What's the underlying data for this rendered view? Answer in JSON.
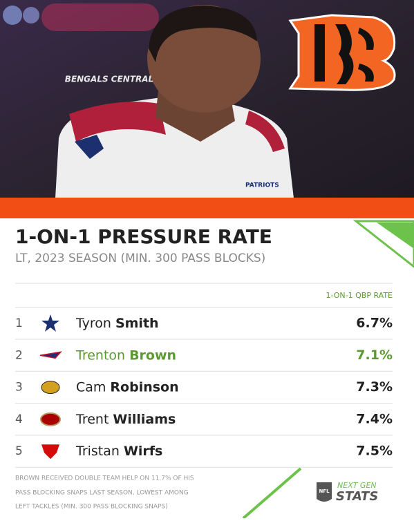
{
  "header": {
    "brand": "BENGALS CENTRAL",
    "jersey": "PATRIOTS"
  },
  "title": "1-ON-1 PRESSURE RATE",
  "subtitle": "LT, 2023 SEASON (MIN. 300 PASS BLOCKS)",
  "table": {
    "column": "1-ON-1 QBP RATE",
    "rows": [
      {
        "rank": 1,
        "first": "Tyron",
        "last": "Smith",
        "rate": "6.7%"
      },
      {
        "rank": 2,
        "first": "Trenton",
        "last": "Brown",
        "rate": "7.1%"
      },
      {
        "rank": 3,
        "first": "Cam",
        "last": "Robinson",
        "rate": "7.3%"
      },
      {
        "rank": 4,
        "first": "Trent",
        "last": "Williams",
        "rate": "7.4%"
      },
      {
        "rank": 5,
        "first": "Tristan",
        "last": "Wirfs",
        "rate": "7.5%"
      }
    ]
  },
  "footnote": [
    "BROWN RECEIVED DOUBLE TEAM HELP ON 11.7% OF HIS",
    "PASS BLOCKING SNAPS LAST SEASON, LOWEST AMONG",
    "LEFT TACKLES (MIN. 300 PASS BLOCKING SNAPS)"
  ],
  "logo": {
    "league": "NFL",
    "line1": "NEXT GEN",
    "line2": "STATS"
  }
}
